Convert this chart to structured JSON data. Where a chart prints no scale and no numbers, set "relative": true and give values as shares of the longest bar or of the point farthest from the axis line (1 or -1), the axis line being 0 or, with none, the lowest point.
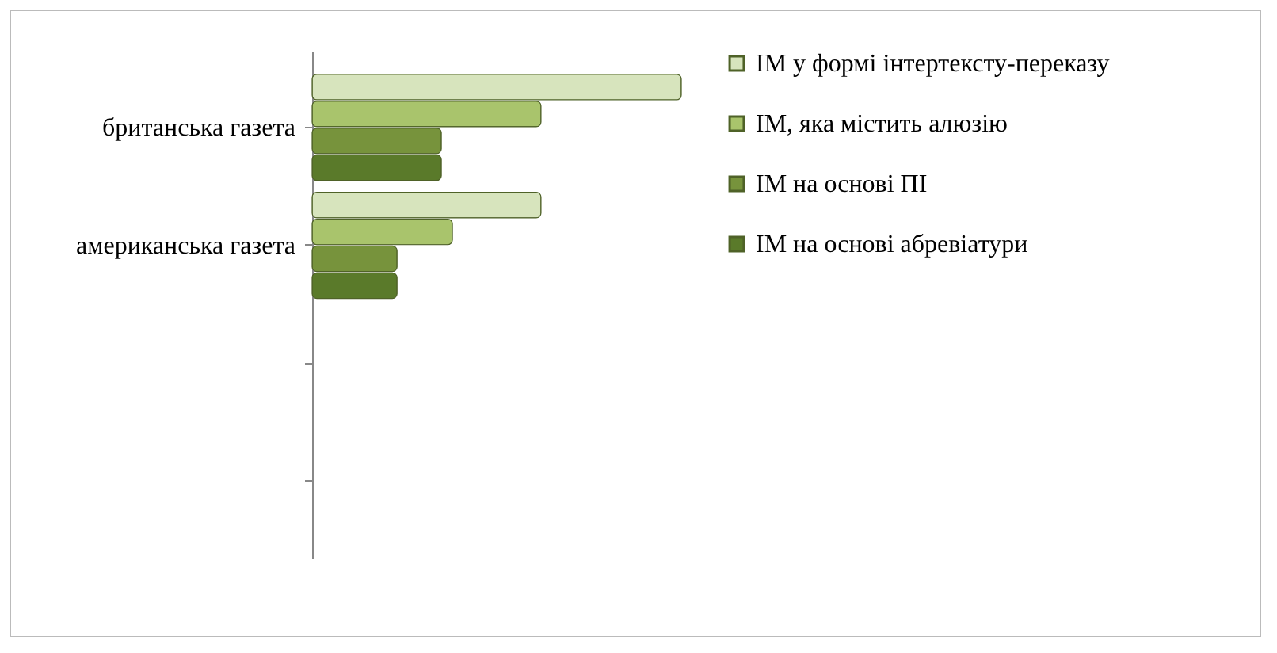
{
  "chart_data": {
    "type": "bar",
    "orientation": "horizontal",
    "relative": true,
    "legend": "right",
    "categories": [
      "британська газета",
      "американська газета",
      null,
      null
    ],
    "series": [
      {
        "name": "ІМ у формі інтертексту-переказу",
        "color": "#d7e4bd",
        "values": [
          1,
          0.62,
          null,
          null
        ]
      },
      {
        "name": "ІМ, яка містить алюзію",
        "color": "#a9c46c",
        "values": [
          0.62,
          0.38,
          null,
          null
        ]
      },
      {
        "name": "ІМ на основі ПІ",
        "color": "#77933c",
        "values": [
          0.35,
          0.23,
          null,
          null
        ]
      },
      {
        "name": "ІМ на основі абревіатури",
        "color": "#5a7a2a",
        "values": [
          0.35,
          0.23,
          null,
          null
        ]
      }
    ]
  }
}
